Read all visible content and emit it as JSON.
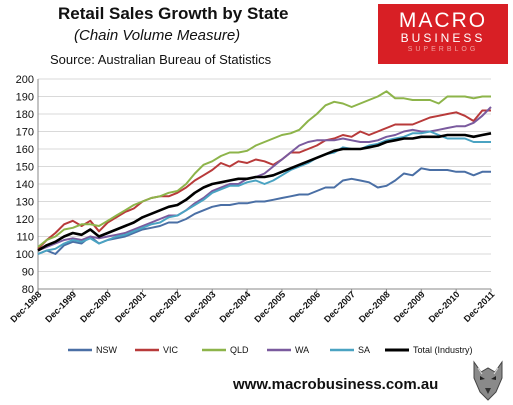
{
  "header": {
    "title": "Retail Sales Growth by State",
    "subtitle": "(Chain Volume Measure)",
    "source": "Source: Australian Bureau of Statistics"
  },
  "logo": {
    "line1": "MACRO",
    "line2": "BUSINESS",
    "line3": "SUPERBLOG"
  },
  "footer": {
    "url": "www.macrobusiness.com.au"
  },
  "colors": {
    "NSW": "#4a6fa5",
    "VIC": "#b83a3a",
    "QLD": "#8db44a",
    "WA": "#7a5a9e",
    "SA": "#4aa3c2",
    "Total (Industry)": "#000000",
    "grid": "#d9d9d9",
    "logo": "#d81f25"
  },
  "icons": {
    "logo_wolf": "wolf-head-icon"
  },
  "chart_data": {
    "type": "line",
    "title": "Retail Sales Growth by State",
    "subtitle": "(Chain Volume Measure)",
    "ylim": [
      80,
      200
    ],
    "xlim": [
      1998.92,
      2011.92
    ],
    "grid": true,
    "legend": "bottom",
    "yticks": [
      80,
      90,
      100,
      110,
      120,
      130,
      140,
      150,
      160,
      170,
      180,
      190,
      200
    ],
    "categories": [
      "Dec-1998",
      "Dec-1999",
      "Dec-2000",
      "Dec-2001",
      "Dec-2002",
      "Dec-2003",
      "Dec-2004",
      "Dec-2005",
      "Dec-2006",
      "Dec-2007",
      "Dec-2008",
      "Dec-2009",
      "Dec-2010",
      "Dec-2011"
    ],
    "x": [
      1998.92,
      1999.17,
      1999.42,
      1999.67,
      1999.92,
      2000.17,
      2000.42,
      2000.67,
      2000.92,
      2001.17,
      2001.42,
      2001.67,
      2001.92,
      2002.17,
      2002.42,
      2002.67,
      2002.92,
      2003.17,
      2003.42,
      2003.67,
      2003.92,
      2004.17,
      2004.42,
      2004.67,
      2004.92,
      2005.17,
      2005.42,
      2005.67,
      2005.92,
      2006.17,
      2006.42,
      2006.67,
      2006.92,
      2007.17,
      2007.42,
      2007.67,
      2007.92,
      2008.17,
      2008.42,
      2008.67,
      2008.92,
      2009.17,
      2009.42,
      2009.67,
      2009.92,
      2010.17,
      2010.42,
      2010.67,
      2010.92,
      2011.17,
      2011.42,
      2011.67,
      2011.92
    ],
    "series": [
      {
        "name": "NSW",
        "values": [
          100,
          102,
          100,
          105,
          107,
          106,
          110,
          106,
          108,
          109,
          110,
          112,
          114,
          115,
          116,
          118,
          118,
          120,
          123,
          125,
          127,
          128,
          128,
          129,
          129,
          130,
          130,
          131,
          132,
          133,
          134,
          134,
          136,
          138,
          138,
          142,
          143,
          142,
          141,
          138,
          139,
          142,
          146,
          145,
          149,
          148,
          148,
          148,
          147,
          147,
          145,
          147,
          147
        ]
      },
      {
        "name": "VIC",
        "values": [
          103,
          108,
          112,
          117,
          119,
          116,
          119,
          113,
          118,
          121,
          124,
          126,
          130,
          132,
          133,
          133,
          135,
          138,
          142,
          145,
          148,
          152,
          150,
          153,
          152,
          154,
          153,
          151,
          154,
          158,
          158,
          160,
          162,
          165,
          166,
          168,
          167,
          170,
          168,
          170,
          172,
          174,
          174,
          174,
          176,
          178,
          179,
          180,
          181,
          179,
          176,
          182,
          182
        ]
      },
      {
        "name": "QLD",
        "values": [
          104,
          108,
          110,
          114,
          115,
          117,
          117,
          116,
          119,
          122,
          125,
          128,
          130,
          132,
          133,
          135,
          136,
          140,
          146,
          151,
          153,
          156,
          158,
          158,
          159,
          162,
          164,
          166,
          168,
          169,
          171,
          176,
          180,
          185,
          187,
          186,
          184,
          186,
          188,
          190,
          193,
          189,
          189,
          188,
          188,
          188,
          186,
          190,
          190,
          190,
          189,
          190,
          190
        ]
      },
      {
        "name": "WA",
        "values": [
          102,
          104,
          106,
          108,
          109,
          108,
          110,
          109,
          110,
          111,
          112,
          114,
          116,
          118,
          120,
          122,
          122,
          125,
          129,
          132,
          136,
          138,
          140,
          140,
          143,
          144,
          146,
          150,
          154,
          158,
          162,
          164,
          165,
          165,
          165,
          166,
          165,
          164,
          164,
          165,
          167,
          168,
          170,
          171,
          170,
          170,
          171,
          172,
          173,
          173,
          175,
          179,
          184
        ]
      },
      {
        "name": "SA",
        "values": [
          100,
          102,
          103,
          106,
          108,
          107,
          109,
          106,
          108,
          110,
          111,
          113,
          115,
          117,
          118,
          121,
          122,
          125,
          128,
          131,
          135,
          137,
          139,
          139,
          141,
          142,
          140,
          142,
          145,
          148,
          150,
          152,
          155,
          157,
          158,
          161,
          160,
          160,
          162,
          163,
          165,
          166,
          167,
          169,
          169,
          170,
          168,
          166,
          166,
          166,
          164,
          164,
          164
        ]
      },
      {
        "name": "Total (Industry)",
        "values": [
          102,
          105,
          107,
          110,
          112,
          111,
          114,
          110,
          112,
          114,
          116,
          118,
          121,
          123,
          125,
          127,
          128,
          131,
          135,
          138,
          140,
          141,
          142,
          143,
          143,
          144,
          144,
          145,
          147,
          149,
          151,
          153,
          155,
          157,
          159,
          160,
          160,
          160,
          161,
          162,
          164,
          165,
          166,
          166,
          167,
          167,
          167,
          168,
          168,
          168,
          167,
          168,
          169
        ]
      }
    ]
  }
}
